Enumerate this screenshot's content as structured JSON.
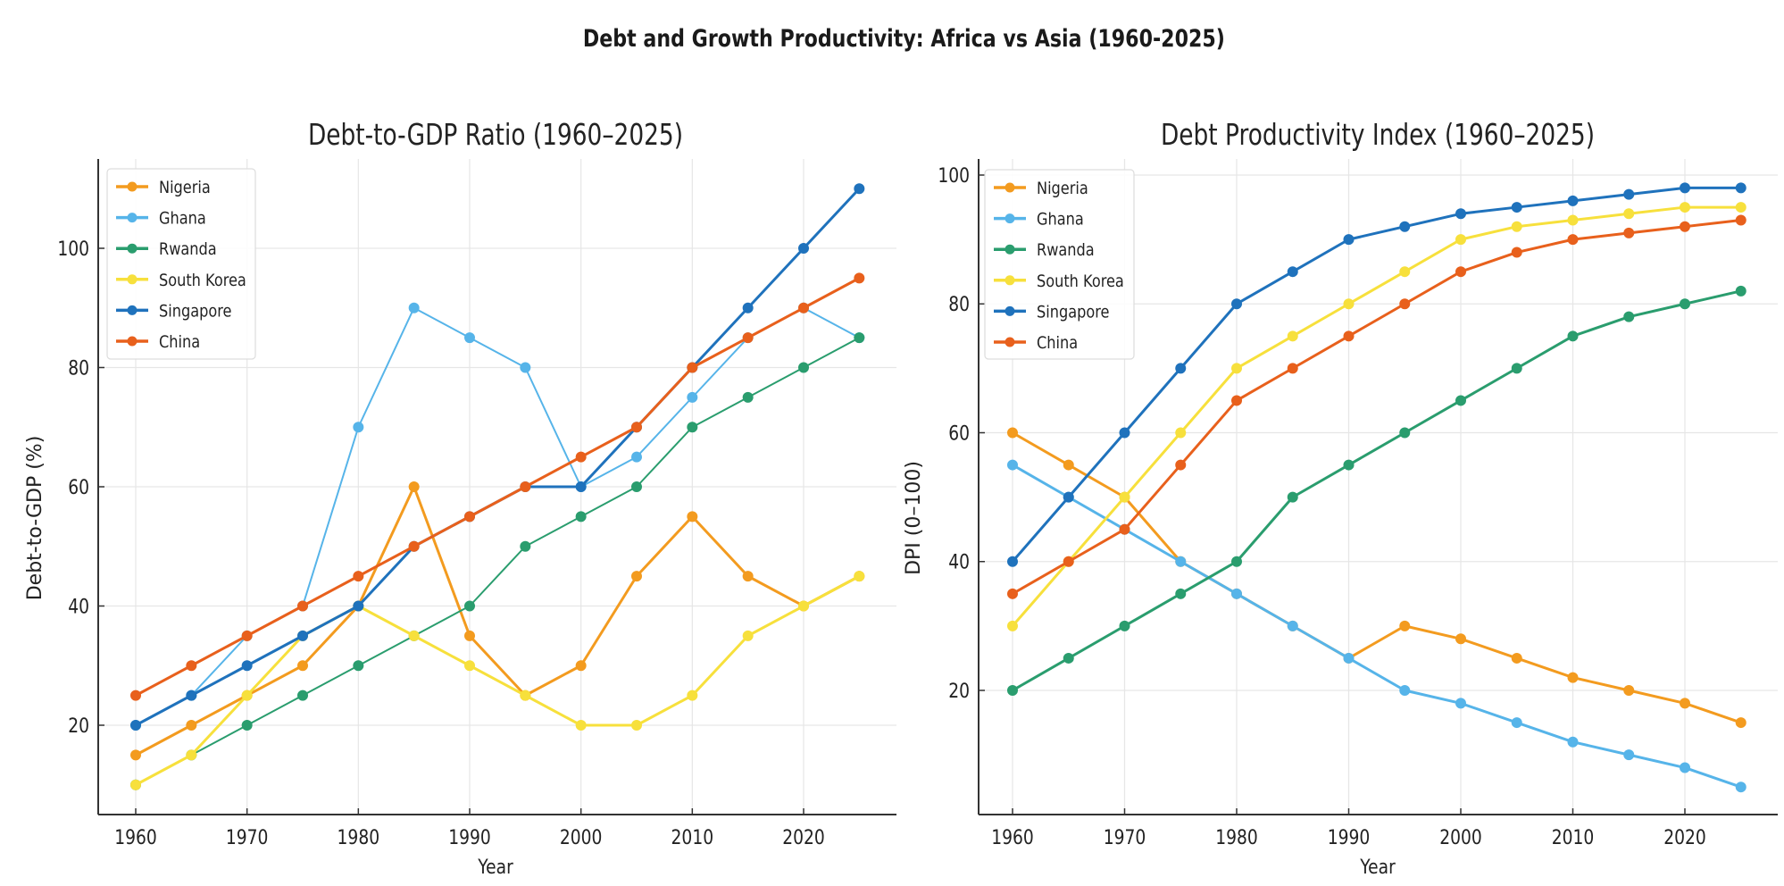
{
  "title": "Debt and Growth Productivity: Africa vs Asia (1960-2025)",
  "chart_data": [
    {
      "type": "line",
      "title": "Debt-to-GDP Ratio (1960–2025)",
      "xlabel": "Year",
      "ylabel": "Debt-to-GDP (%)",
      "x": [
        1960,
        1965,
        1970,
        1975,
        1980,
        1985,
        1990,
        1995,
        2000,
        2005,
        2010,
        2015,
        2020,
        2025
      ],
      "xticks": [
        1960,
        1970,
        1980,
        1990,
        2000,
        2010,
        2020
      ],
      "yticks": [
        20,
        40,
        60,
        80,
        100
      ],
      "xlim": [
        1958,
        2031
      ],
      "ylim": [
        5,
        118
      ],
      "grid": true,
      "legend": "top-left",
      "series": [
        {
          "name": "Nigeria",
          "color": "#F39B1F",
          "width": "thick",
          "values": [
            15,
            20,
            25,
            30,
            40,
            60,
            35,
            25,
            30,
            45,
            55,
            45,
            40,
            45
          ]
        },
        {
          "name": "Ghana",
          "color": "#56B4E9",
          "width": "thin",
          "values": [
            20,
            25,
            35,
            40,
            70,
            90,
            85,
            80,
            60,
            65,
            75,
            85,
            90,
            85
          ]
        },
        {
          "name": "Rwanda",
          "color": "#2A9D6E",
          "width": "thin",
          "values": [
            10,
            15,
            20,
            25,
            30,
            35,
            40,
            50,
            55,
            60,
            70,
            75,
            80,
            85
          ]
        },
        {
          "name": "South Korea",
          "color": "#F7E03C",
          "width": "thick",
          "values": [
            10,
            15,
            25,
            35,
            40,
            35,
            30,
            25,
            20,
            20,
            25,
            35,
            40,
            45
          ]
        },
        {
          "name": "Singapore",
          "color": "#1F72BC",
          "width": "thick",
          "values": [
            20,
            25,
            30,
            35,
            40,
            50,
            55,
            60,
            60,
            70,
            80,
            90,
            100,
            110
          ]
        },
        {
          "name": "China",
          "color": "#E8601C",
          "width": "thick",
          "values": [
            25,
            30,
            35,
            40,
            45,
            50,
            55,
            60,
            65,
            70,
            80,
            85,
            90,
            95
          ]
        }
      ]
    },
    {
      "type": "line",
      "title": "Debt Productivity Index (1960–2025)",
      "xlabel": "Year",
      "ylabel": "DPI (0–100)",
      "x": [
        1960,
        1965,
        1970,
        1975,
        1980,
        1985,
        1990,
        1995,
        2000,
        2005,
        2010,
        2015,
        2020,
        2025
      ],
      "xticks": [
        1960,
        1970,
        1980,
        1990,
        2000,
        2010,
        2020
      ],
      "yticks": [
        20,
        40,
        60,
        80,
        100
      ],
      "xlim": [
        1958,
        2032
      ],
      "ylim": [
        1,
        102
      ],
      "grid": true,
      "legend": "top-left",
      "series": [
        {
          "name": "Nigeria",
          "color": "#F39B1F",
          "width": "thick",
          "values": [
            60,
            55,
            50,
            40,
            35,
            30,
            25,
            30,
            28,
            25,
            22,
            20,
            18,
            15
          ]
        },
        {
          "name": "Ghana",
          "color": "#56B4E9",
          "width": "thick",
          "values": [
            55,
            50,
            45,
            40,
            35,
            30,
            25,
            20,
            18,
            15,
            12,
            10,
            8,
            5
          ]
        },
        {
          "name": "Rwanda",
          "color": "#2A9D6E",
          "width": "thick",
          "values": [
            20,
            25,
            30,
            35,
            40,
            50,
            55,
            60,
            65,
            70,
            75,
            78,
            80,
            82
          ]
        },
        {
          "name": "South Korea",
          "color": "#F7E03C",
          "width": "thick",
          "values": [
            30,
            40,
            50,
            60,
            70,
            75,
            80,
            85,
            90,
            92,
            93,
            94,
            95,
            95
          ]
        },
        {
          "name": "Singapore",
          "color": "#1F72BC",
          "width": "thick",
          "values": [
            40,
            50,
            60,
            70,
            80,
            85,
            90,
            92,
            94,
            95,
            96,
            97,
            98,
            98
          ]
        },
        {
          "name": "China",
          "color": "#E8601C",
          "width": "thick",
          "values": [
            35,
            40,
            45,
            55,
            65,
            70,
            75,
            80,
            85,
            88,
            90,
            91,
            92,
            93
          ]
        }
      ]
    }
  ]
}
